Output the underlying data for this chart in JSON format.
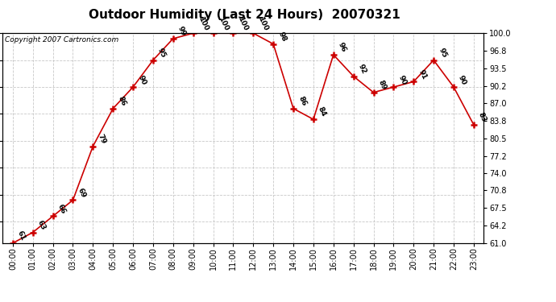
{
  "title": "Outdoor Humidity (Last 24 Hours)  20070321",
  "copyright": "Copyright 2007 Cartronics.com",
  "hours": [
    0,
    1,
    2,
    3,
    4,
    5,
    6,
    7,
    8,
    9,
    10,
    11,
    12,
    13,
    14,
    15,
    16,
    17,
    18,
    19,
    20,
    21,
    22,
    23
  ],
  "values": [
    61,
    63,
    66,
    69,
    79,
    86,
    90,
    95,
    99,
    100,
    100,
    100,
    100,
    98,
    86,
    84,
    96,
    92,
    89,
    90,
    91,
    95,
    90,
    83
  ],
  "hour_labels": [
    "00:00",
    "01:00",
    "02:00",
    "03:00",
    "04:00",
    "05:00",
    "06:00",
    "07:00",
    "08:00",
    "09:00",
    "10:00",
    "11:00",
    "12:00",
    "13:00",
    "14:00",
    "15:00",
    "16:00",
    "17:00",
    "18:00",
    "19:00",
    "20:00",
    "21:00",
    "22:00",
    "23:00"
  ],
  "y_ticks": [
    61.0,
    64.2,
    67.5,
    70.8,
    74.0,
    77.2,
    80.5,
    83.8,
    87.0,
    90.2,
    93.5,
    96.8,
    100.0
  ],
  "ylim_min": 61.0,
  "ylim_max": 100.0,
  "line_color": "#cc0000",
  "bg_color": "#ffffff",
  "grid_color": "#c8c8c8",
  "title_fontsize": 11,
  "tick_fontsize": 7,
  "label_fontsize": 6.5,
  "copyright_fontsize": 6.5
}
